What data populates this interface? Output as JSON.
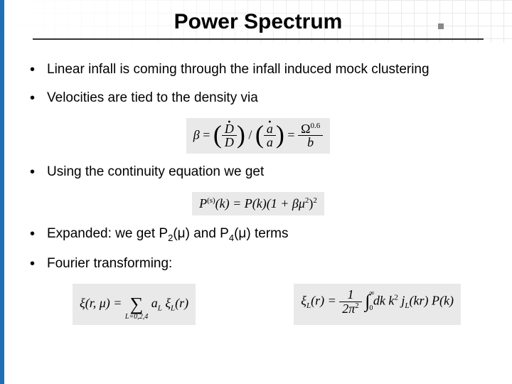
{
  "accent_color": "#1f6fb2",
  "grid_color": "#d8d8d8",
  "eq_bg": "#e9e9e9",
  "title": "Power Spectrum",
  "bullets": {
    "b1": "Linear infall is coming through the infall induced mock clustering",
    "b2": "Velocities are tied to the density via",
    "b3": "Using the continuity equation we get",
    "b4_pre": "Expanded: we get P",
    "b4_sub1": "2",
    "b4_mid1": "(μ) and P",
    "b4_sub2": "4",
    "b4_mid2": "(μ) terms",
    "b5": "Fourier transforming:"
  },
  "eq1": {
    "beta": "β",
    "eq": " = ",
    "lp": "(",
    "rp": ")",
    "Ddot": "D",
    "D": "D",
    "slash": " / ",
    "adot": "a",
    "a": "a",
    "omega": "Ω",
    "exp": "0.6",
    "b": "b"
  },
  "eq2": {
    "P": "P",
    "sup_s": "(s)",
    "k": "(k) = P(k)(1 + βμ",
    "sq": "2",
    "close": ")",
    "outer_sq": "2"
  },
  "eq3": {
    "xi": "ξ(r, μ) = ",
    "sum_low": "L=0,2,4",
    "a": " a",
    "L": "L",
    "xiL": " ξ",
    "r": "(r)"
  },
  "eq4": {
    "xiL": "ξ",
    "L": "L",
    "r": "(r) = ",
    "one": "1",
    "twopi": "2π",
    "sq": "2",
    "int_u": "∞",
    "int_l": "0",
    "dk": " dk  k",
    "ksq": "2",
    "jL": " j",
    "kr": "(kr) P(k)"
  }
}
